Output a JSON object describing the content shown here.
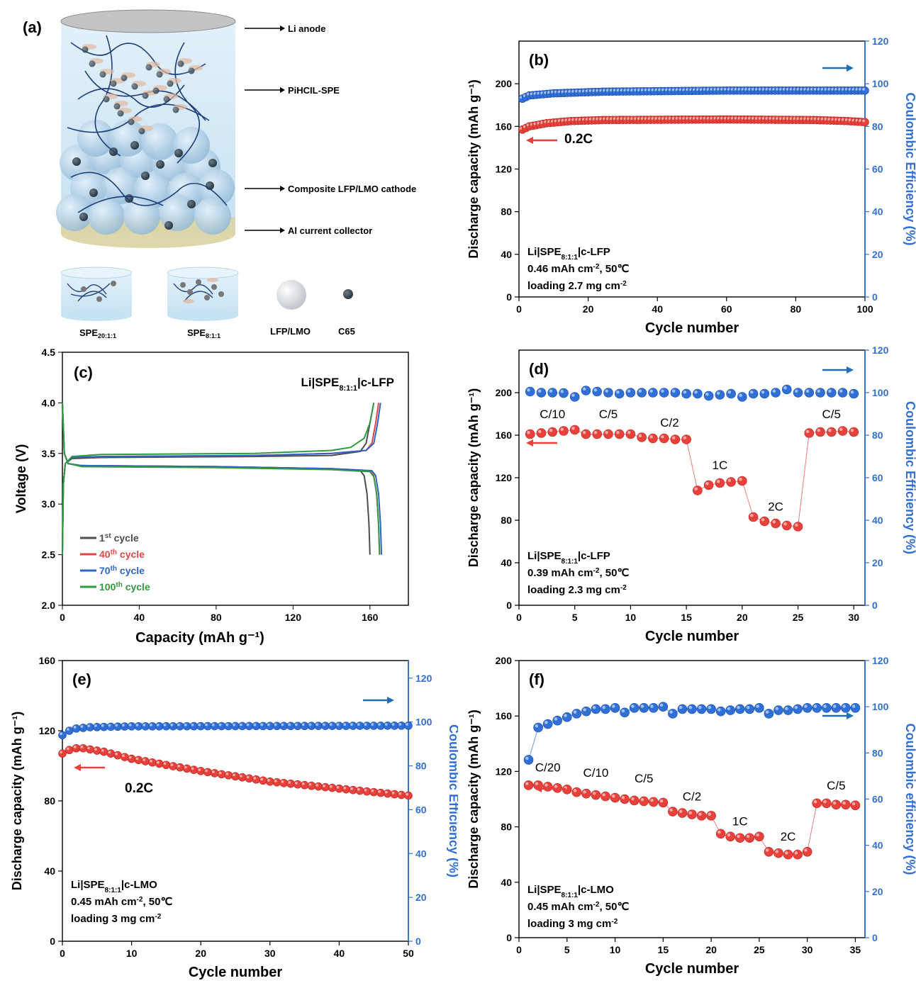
{
  "schematic": {
    "panel_label": "(a)",
    "labels": [
      "Li anode",
      "PiHCIL-SPE",
      "Composite LFP/LMO cathode",
      "Al current collector"
    ],
    "legend": {
      "spe1": {
        "base": "SPE",
        "sub": "20:1:1"
      },
      "spe2": {
        "base": "SPE",
        "sub": "8:1:1"
      },
      "ball": "LFP/LMO",
      "carbon": "C65"
    },
    "colors": {
      "electrolyte": "#cfe6f4",
      "anode": "#c8c8c8",
      "collector": "#d9d2a4",
      "particle": "#9ec3df"
    }
  },
  "chart_data": [
    {
      "id": "b",
      "type": "scatter",
      "panel_label": "(b)",
      "xlabel": "Cycle number",
      "ylabel_left": "Discharge capacity (mAh g⁻¹)",
      "ylabel_right": "Coulombic Efficiency (%)",
      "xlim": [
        0,
        100
      ],
      "xticks": [
        0,
        20,
        40,
        60,
        80,
        100
      ],
      "ylim_left": [
        0,
        240
      ],
      "yticks_left": [
        0,
        40,
        80,
        120,
        160,
        200
      ],
      "ylim_right": [
        0,
        120
      ],
      "yticks_right": [
        0,
        20,
        40,
        60,
        80,
        100,
        120
      ],
      "rate_label": "0.2C",
      "annotation": [
        "Li|SPE_8:1:1|c-LFP",
        "0.46 mAh cm^-2, 50℃",
        "loading 2.7 mg cm^-2"
      ],
      "series": [
        {
          "axis": "left",
          "color": "#e8403a",
          "x_start": 1,
          "x_end": 100,
          "step": 1,
          "profile": [
            [
              1,
              157
            ],
            [
              3,
              160
            ],
            [
              8,
              163
            ],
            [
              15,
              165
            ],
            [
              25,
              166
            ],
            [
              60,
              166.5
            ],
            [
              85,
              166
            ],
            [
              95,
              165
            ],
            [
              100,
              164
            ]
          ]
        },
        {
          "axis": "right",
          "color": "#2f6fd6",
          "x_start": 1,
          "x_end": 100,
          "step": 1,
          "profile": [
            [
              1,
              93
            ],
            [
              3,
              94.5
            ],
            [
              10,
              95.5
            ],
            [
              25,
              96.3
            ],
            [
              60,
              96.8
            ],
            [
              100,
              96.8
            ]
          ]
        }
      ]
    },
    {
      "id": "c",
      "type": "line",
      "panel_label": "(c)",
      "title": "Li|SPE_8:1:1|c-LFP",
      "xlabel": "Capacity (mAh g⁻¹)",
      "ylabel": "Voltage (V)",
      "xlim": [
        0,
        180
      ],
      "xticks": [
        0,
        40,
        80,
        120,
        160
      ],
      "ylim": [
        2.0,
        4.5
      ],
      "yticks": [
        2.0,
        2.5,
        3.0,
        3.5,
        4.0,
        4.5
      ],
      "series": [
        {
          "name": "1st cycle",
          "sup": "st",
          "num": "1",
          "color": "#4d4d4d",
          "charge": [
            [
              0,
              2.5
            ],
            [
              0.5,
              3.2
            ],
            [
              1.5,
              3.4
            ],
            [
              5,
              3.45
            ],
            [
              20,
              3.46
            ],
            [
              100,
              3.47
            ],
            [
              140,
              3.48
            ],
            [
              155,
              3.52
            ],
            [
              158,
              3.6
            ],
            [
              160,
              3.8
            ],
            [
              162,
              4.0
            ]
          ],
          "discharge": [
            [
              0,
              4.0
            ],
            [
              1,
              3.5
            ],
            [
              3,
              3.4
            ],
            [
              10,
              3.38
            ],
            [
              80,
              3.37
            ],
            [
              140,
              3.35
            ],
            [
              155,
              3.33
            ],
            [
              157,
              3.28
            ],
            [
              158.5,
              3.1
            ],
            [
              159.5,
              2.8
            ],
            [
              160,
              2.5
            ]
          ]
        },
        {
          "name": "40th cycle",
          "sup": "th",
          "num": "40",
          "color": "#e04545",
          "charge": [
            [
              0,
              2.5
            ],
            [
              0.5,
              3.2
            ],
            [
              1.5,
              3.4
            ],
            [
              5,
              3.46
            ],
            [
              20,
              3.47
            ],
            [
              100,
              3.48
            ],
            [
              140,
              3.5
            ],
            [
              158,
              3.53
            ],
            [
              161,
              3.6
            ],
            [
              163,
              3.8
            ],
            [
              164.5,
              4.0
            ]
          ],
          "discharge": [
            [
              0,
              4.0
            ],
            [
              1,
              3.5
            ],
            [
              3,
              3.4
            ],
            [
              10,
              3.38
            ],
            [
              80,
              3.37
            ],
            [
              140,
              3.35
            ],
            [
              160,
              3.33
            ],
            [
              162,
              3.28
            ],
            [
              163.5,
              3.1
            ],
            [
              164.5,
              2.8
            ],
            [
              165,
              2.5
            ]
          ]
        },
        {
          "name": "70th cycle",
          "sup": "th",
          "num": "70",
          "color": "#2e63c7",
          "charge": [
            [
              0,
              2.5
            ],
            [
              0.5,
              3.2
            ],
            [
              1.5,
              3.4
            ],
            [
              5,
              3.46
            ],
            [
              20,
              3.47
            ],
            [
              100,
              3.48
            ],
            [
              140,
              3.5
            ],
            [
              158,
              3.53
            ],
            [
              162,
              3.6
            ],
            [
              164,
              3.8
            ],
            [
              165.5,
              4.0
            ]
          ],
          "discharge": [
            [
              0,
              4.0
            ],
            [
              1,
              3.5
            ],
            [
              3,
              3.4
            ],
            [
              10,
              3.38
            ],
            [
              80,
              3.37
            ],
            [
              140,
              3.35
            ],
            [
              161,
              3.33
            ],
            [
              163,
              3.28
            ],
            [
              164.5,
              3.1
            ],
            [
              165.5,
              2.8
            ],
            [
              166,
              2.5
            ]
          ]
        },
        {
          "name": "100th cycle",
          "sup": "th",
          "num": "100",
          "color": "#2f9a3f",
          "charge": [
            [
              0,
              2.5
            ],
            [
              0.5,
              3.2
            ],
            [
              1.5,
              3.4
            ],
            [
              5,
              3.47
            ],
            [
              20,
              3.49
            ],
            [
              100,
              3.5
            ],
            [
              140,
              3.53
            ],
            [
              150,
              3.56
            ],
            [
              157,
              3.65
            ],
            [
              160,
              3.8
            ],
            [
              162,
              4.0
            ]
          ],
          "discharge": [
            [
              0,
              4.0
            ],
            [
              1,
              3.5
            ],
            [
              3,
              3.4
            ],
            [
              10,
              3.37
            ],
            [
              80,
              3.36
            ],
            [
              140,
              3.34
            ],
            [
              160,
              3.32
            ],
            [
              162,
              3.27
            ],
            [
              163.5,
              3.1
            ],
            [
              164.5,
              2.8
            ],
            [
              165,
              2.5
            ]
          ]
        }
      ]
    },
    {
      "id": "d",
      "type": "scatter",
      "panel_label": "(d)",
      "xlabel": "Cycle number",
      "ylabel_left": "Discharge capacity (mAh g⁻¹)",
      "ylabel_right": "Coulombic Efficiency (%)",
      "xlim": [
        0,
        31
      ],
      "xticks": [
        0,
        5,
        10,
        15,
        20,
        25,
        30
      ],
      "ylim_left": [
        0,
        240
      ],
      "yticks_left": [
        0,
        40,
        80,
        120,
        160,
        200
      ],
      "ylim_right": [
        0,
        120
      ],
      "yticks_right": [
        0,
        20,
        40,
        60,
        80,
        100,
        120
      ],
      "rate_labels": [
        {
          "text": "C/10",
          "x": 3,
          "y": 176
        },
        {
          "text": "C/5",
          "x": 8,
          "y": 176
        },
        {
          "text": "C/2",
          "x": 13.5,
          "y": 168
        },
        {
          "text": "1C",
          "x": 18,
          "y": 128
        },
        {
          "text": "2C",
          "x": 23,
          "y": 89
        },
        {
          "text": "C/5",
          "x": 28,
          "y": 176
        }
      ],
      "annotation": [
        "Li|SPE_8:1:1|c-LFP",
        "0.39 mAh cm^-2, 50℃",
        "loading 2.3 mg cm^-2"
      ],
      "series": [
        {
          "axis": "left",
          "color": "#e8403a",
          "connect": true,
          "x": [
            1,
            2,
            3,
            4,
            5,
            6,
            7,
            8,
            9,
            10,
            11,
            12,
            13,
            14,
            15,
            16,
            17,
            18,
            19,
            20,
            21,
            22,
            23,
            24,
            25,
            26,
            27,
            28,
            29,
            30
          ],
          "y": [
            161,
            162,
            163,
            164,
            165,
            161,
            161,
            161,
            161,
            161,
            158,
            157,
            157,
            156,
            156,
            108,
            113,
            115,
            116,
            117,
            83,
            79,
            77,
            75,
            74,
            162,
            163,
            163,
            164,
            163
          ]
        },
        {
          "axis": "right",
          "color": "#2f6fd6",
          "connect": false,
          "x": [
            1,
            2,
            3,
            4,
            5,
            6,
            7,
            8,
            9,
            10,
            11,
            12,
            13,
            14,
            15,
            16,
            17,
            18,
            19,
            20,
            21,
            22,
            23,
            24,
            25,
            26,
            27,
            28,
            29,
            30
          ],
          "y": [
            100.5,
            100,
            100,
            99.8,
            98,
            101,
            100.5,
            100,
            99.5,
            100,
            100,
            100,
            100,
            100,
            99.5,
            99.5,
            98.5,
            99,
            99.5,
            98,
            99.5,
            99.5,
            100,
            101.5,
            100,
            100,
            100,
            100,
            100,
            99.5
          ]
        }
      ]
    },
    {
      "id": "e",
      "type": "scatter",
      "panel_label": "(e)",
      "xlabel": "Cycle number",
      "ylabel_left": "Discharge capacity (mAh g⁻¹)",
      "ylabel_right": "Coulombic Efficiency (%)",
      "xlim": [
        0,
        50
      ],
      "xticks": [
        0,
        10,
        20,
        30,
        40,
        50
      ],
      "ylim_left": [
        0,
        160
      ],
      "yticks_left": [
        0,
        40,
        80,
        120,
        160
      ],
      "ylim_right": [
        0,
        128
      ],
      "yticks_right": [
        0,
        20,
        40,
        60,
        80,
        100,
        120
      ],
      "rate_label": "0.2C",
      "annotation": [
        "Li|SPE_8:1:1|c-LMO",
        "0.45 mAh cm^-2, 50℃",
        "loading 3 mg cm^-2"
      ],
      "series": [
        {
          "axis": "left",
          "color": "#e8403a",
          "x_start": 0,
          "x_end": 50,
          "step": 1,
          "profile": [
            [
              0,
              107
            ],
            [
              1,
              109
            ],
            [
              2,
              110
            ],
            [
              3,
              110
            ],
            [
              6,
              108
            ],
            [
              10,
              104
            ],
            [
              20,
              97
            ],
            [
              30,
              91
            ],
            [
              40,
              87
            ],
            [
              50,
              83
            ]
          ]
        },
        {
          "axis": "right",
          "color": "#2f6fd6",
          "x_start": 0,
          "x_end": 50,
          "step": 1,
          "profile": [
            [
              0,
              94
            ],
            [
              1,
              96
            ],
            [
              2,
              97
            ],
            [
              4,
              97.6
            ],
            [
              10,
              98
            ],
            [
              50,
              98.3
            ]
          ]
        }
      ]
    },
    {
      "id": "f",
      "type": "scatter",
      "panel_label": "(f)",
      "xlabel": "Cycle number",
      "ylabel_left": "Discharge capacity (mAh g⁻¹)",
      "ylabel_right": "Coulombic efficiency (%)",
      "xlim": [
        0,
        36
      ],
      "xticks": [
        0,
        5,
        10,
        15,
        20,
        25,
        30,
        35
      ],
      "ylim_left": [
        0,
        200
      ],
      "yticks_left": [
        0,
        40,
        80,
        120,
        160,
        200
      ],
      "ylim_right": [
        0,
        120
      ],
      "yticks_right": [
        0,
        20,
        40,
        60,
        80,
        100,
        120
      ],
      "rate_labels": [
        {
          "text": "C/20",
          "x": 3,
          "y": 120
        },
        {
          "text": "C/10",
          "x": 8,
          "y": 116
        },
        {
          "text": "C/5",
          "x": 13,
          "y": 112
        },
        {
          "text": "C/2",
          "x": 18,
          "y": 99
        },
        {
          "text": "1C",
          "x": 23,
          "y": 81
        },
        {
          "text": "2C",
          "x": 28,
          "y": 70
        },
        {
          "text": "C/5",
          "x": 33,
          "y": 107
        }
      ],
      "annotation": [
        "Li|SPE_8:1:1|c-LMO",
        "0.45 mAh cm^-2, 50℃",
        "loading 3 mg cm^-2"
      ],
      "series": [
        {
          "axis": "left",
          "color": "#e8403a",
          "connect": true,
          "x": [
            1,
            2,
            3,
            4,
            5,
            6,
            7,
            8,
            9,
            10,
            11,
            12,
            13,
            14,
            15,
            16,
            17,
            18,
            19,
            20,
            21,
            22,
            23,
            24,
            25,
            26,
            27,
            28,
            29,
            30,
            31,
            32,
            33,
            34,
            35
          ],
          "y": [
            110,
            110,
            109,
            108,
            107,
            105,
            104,
            103,
            102,
            101,
            100,
            99,
            98.5,
            98,
            97.5,
            91,
            90,
            89,
            88,
            88,
            75,
            73,
            72,
            72,
            73,
            62,
            61,
            60,
            60,
            62,
            97,
            97,
            96,
            96,
            95.5
          ]
        },
        {
          "axis": "right",
          "color": "#2f6fd6",
          "connect": true,
          "connect_first": true,
          "x": [
            1,
            2,
            3,
            4,
            5,
            6,
            7,
            8,
            9,
            10,
            11,
            12,
            13,
            14,
            15,
            16,
            17,
            18,
            19,
            20,
            21,
            22,
            23,
            24,
            25,
            26,
            27,
            28,
            29,
            30,
            31,
            32,
            33,
            34,
            35
          ],
          "y": [
            77,
            91,
            92.5,
            94,
            95.5,
            97,
            98,
            99,
            99,
            99.5,
            97.5,
            99.5,
            99.5,
            99.5,
            100,
            97,
            99,
            99,
            99,
            99,
            98,
            98.5,
            99,
            99,
            99.5,
            97,
            98.5,
            98.5,
            99,
            99.5,
            99.5,
            99.5,
            99.5,
            99.5,
            99.5
          ]
        }
      ]
    }
  ]
}
